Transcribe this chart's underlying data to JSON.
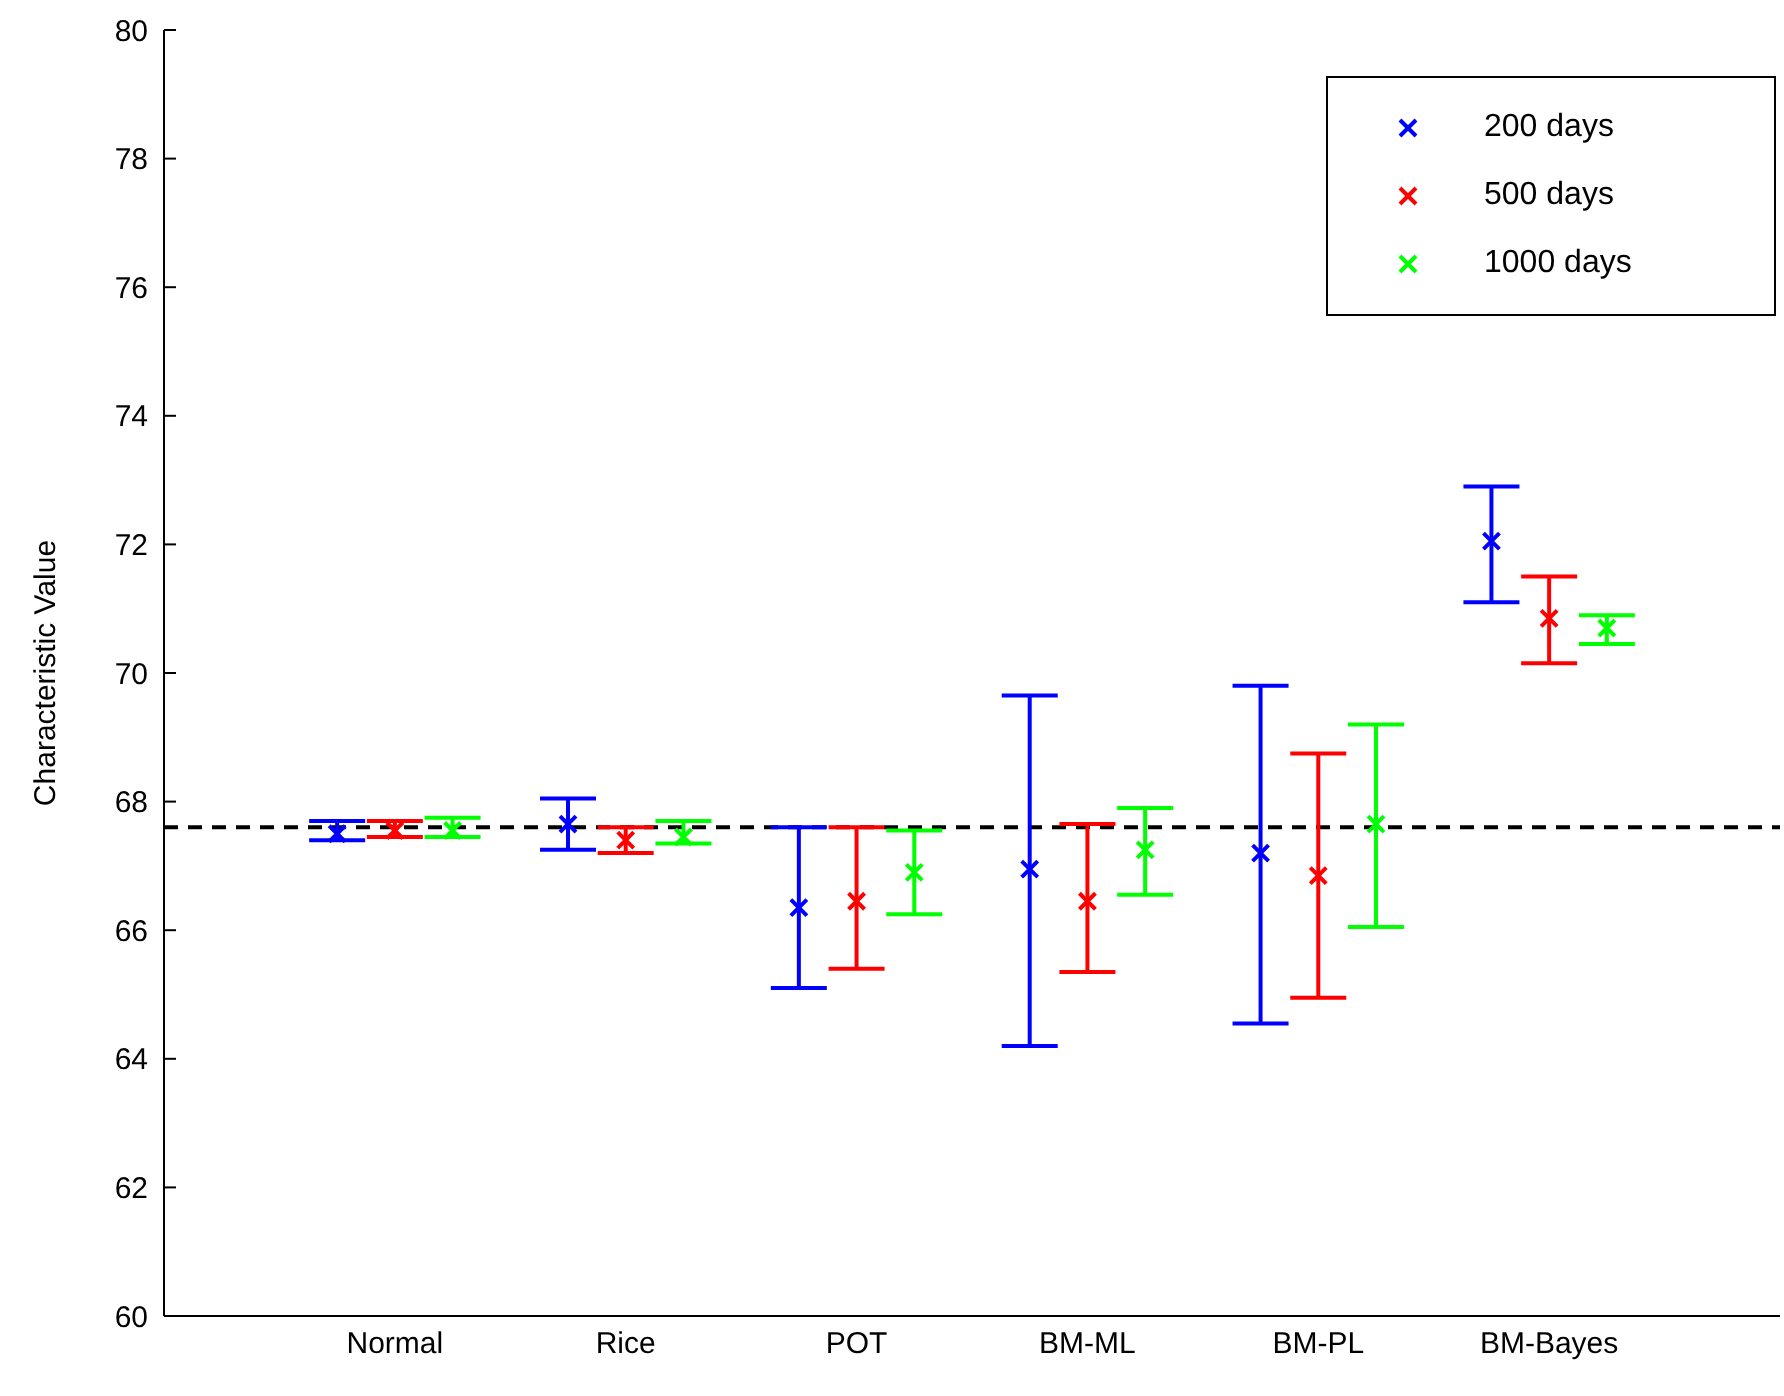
{
  "chart_data": {
    "type": "scatter",
    "ylabel": "Characteristic Value",
    "categories": [
      "Normal",
      "Rice",
      "POT",
      "BM-ML",
      "BM-PL",
      "BM-Bayes"
    ],
    "series": [
      {
        "name": "200 days",
        "color": "#0000ff",
        "values": [
          67.5,
          67.65,
          66.35,
          66.95,
          67.2,
          72.05
        ],
        "errors": [
          [
            67.4,
            67.7
          ],
          [
            67.25,
            68.05
          ],
          [
            65.1,
            67.6
          ],
          [
            64.2,
            69.65
          ],
          [
            64.55,
            69.8
          ],
          [
            71.1,
            72.9
          ]
        ]
      },
      {
        "name": "500 days",
        "color": "#ff0000",
        "values": [
          67.55,
          67.4,
          66.45,
          66.45,
          66.85,
          70.85
        ],
        "errors": [
          [
            67.45,
            67.7
          ],
          [
            67.2,
            67.6
          ],
          [
            65.4,
            67.6
          ],
          [
            65.35,
            67.65
          ],
          [
            64.95,
            68.75
          ],
          [
            70.15,
            71.5
          ]
        ]
      },
      {
        "name": "1000 days",
        "color": "#00ff00",
        "values": [
          67.55,
          67.45,
          66.9,
          67.25,
          67.65,
          70.7
        ],
        "errors": [
          [
            67.45,
            67.75
          ],
          [
            67.35,
            67.7
          ],
          [
            66.25,
            67.55
          ],
          [
            66.55,
            67.9
          ],
          [
            66.05,
            69.2
          ],
          [
            70.45,
            70.9
          ]
        ]
      }
    ],
    "ylim": [
      60,
      80
    ],
    "yticks": [
      60,
      62,
      64,
      66,
      68,
      70,
      72,
      74,
      76,
      78,
      80
    ],
    "grid": false,
    "legend": "top right",
    "marker": "cross",
    "ref_lines": [
      {
        "axis": "y",
        "value": 67.6,
        "color": "#000000",
        "line_style": "dashed"
      }
    ]
  }
}
